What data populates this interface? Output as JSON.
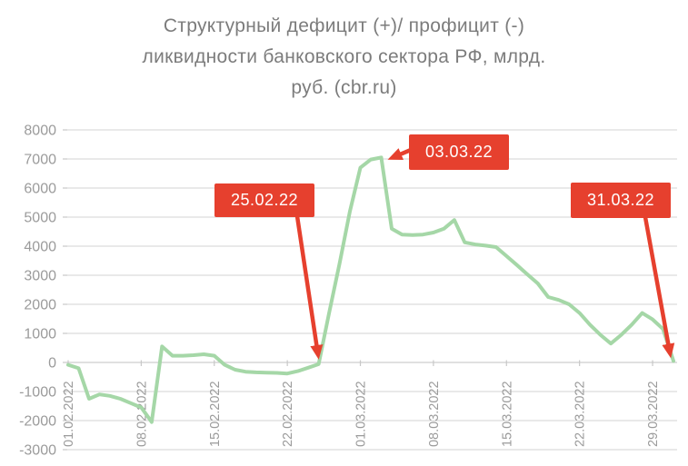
{
  "title": {
    "lines": [
      "Структурный дефицит (+)/ профицит (-)",
      "ликвидности банковского сектора РФ, млрд.",
      "руб. (cbr.ru)"
    ]
  },
  "chart_data": {
    "type": "line",
    "title": "Структурный дефицит (+)/ профицит (-) ликвидности банковского сектора РФ, млрд. руб. (cbr.ru)",
    "xlabel": "",
    "ylabel": "",
    "ylim": [
      -3000,
      8000
    ],
    "ytick_step": 1000,
    "grid": true,
    "legend": false,
    "yticks": [
      8000,
      7000,
      6000,
      5000,
      4000,
      3000,
      2000,
      1000,
      0,
      -1000,
      -2000,
      -3000
    ],
    "xtick_labels": [
      "01.02.2022",
      "08.02.2022",
      "15.02.2022",
      "22.02.2022",
      "01.03.2022",
      "08.03.2022",
      "15.03.2022",
      "22.03.2022",
      "29.03.2022"
    ],
    "colors": {
      "series_line": "#a5d7a7",
      "annotation": "#e6402e",
      "annotation_text": "#ffffff",
      "grid": "#dcdcdc",
      "grid_zero": "#cdcdcd",
      "tick": "#c8c8c8",
      "axis_text": "#9b9b9b",
      "title_text": "#7c7c7c",
      "background": "#ffffff"
    },
    "series": [
      {
        "name": "Структурный дефицит (+)/ профицит (-) ликвидности",
        "dates": [
          "01.02.2022",
          "02.02.2022",
          "03.02.2022",
          "04.02.2022",
          "05.02.2022",
          "06.02.2022",
          "07.02.2022",
          "08.02.2022",
          "09.02.2022",
          "10.02.2022",
          "11.02.2022",
          "12.02.2022",
          "13.02.2022",
          "14.02.2022",
          "15.02.2022",
          "16.02.2022",
          "17.02.2022",
          "18.02.2022",
          "19.02.2022",
          "20.02.2022",
          "21.02.2022",
          "22.02.2022",
          "23.02.2022",
          "24.02.2022",
          "25.02.2022",
          "26.02.2022",
          "27.02.2022",
          "28.02.2022",
          "01.03.2022",
          "02.03.2022",
          "03.03.2022",
          "04.03.2022",
          "05.03.2022",
          "06.03.2022",
          "07.03.2022",
          "08.03.2022",
          "09.03.2022",
          "10.03.2022",
          "11.03.2022",
          "12.03.2022",
          "13.03.2022",
          "14.03.2022",
          "15.03.2022",
          "16.03.2022",
          "17.03.2022",
          "18.03.2022",
          "19.03.2022",
          "20.03.2022",
          "21.03.2022",
          "22.03.2022",
          "23.03.2022",
          "24.03.2022",
          "25.03.2022",
          "26.03.2022",
          "27.03.2022",
          "28.03.2022",
          "29.03.2022",
          "30.03.2022",
          "31.03.2022"
        ],
        "values": [
          -80,
          -200,
          -1250,
          -1100,
          -1150,
          -1250,
          -1400,
          -1550,
          -2050,
          550,
          230,
          230,
          250,
          280,
          230,
          -80,
          -250,
          -320,
          -340,
          -350,
          -360,
          -380,
          -300,
          -180,
          -60,
          1700,
          3400,
          5200,
          6700,
          6980,
          7050,
          4600,
          4400,
          4380,
          4400,
          4470,
          4600,
          4900,
          4130,
          4060,
          4020,
          3970,
          3660,
          3350,
          3030,
          2720,
          2250,
          2150,
          2000,
          1700,
          1300,
          950,
          650,
          950,
          1300,
          1700,
          1480,
          1150,
          50
        ]
      }
    ],
    "annotations": [
      {
        "label": "25.02.22",
        "date": "25.02.2022",
        "value": -60
      },
      {
        "label": "03.03.22",
        "date": "03.03.2022",
        "value": 7050
      },
      {
        "label": "31.03.22",
        "date": "31.03.2022",
        "value": 50
      }
    ]
  }
}
